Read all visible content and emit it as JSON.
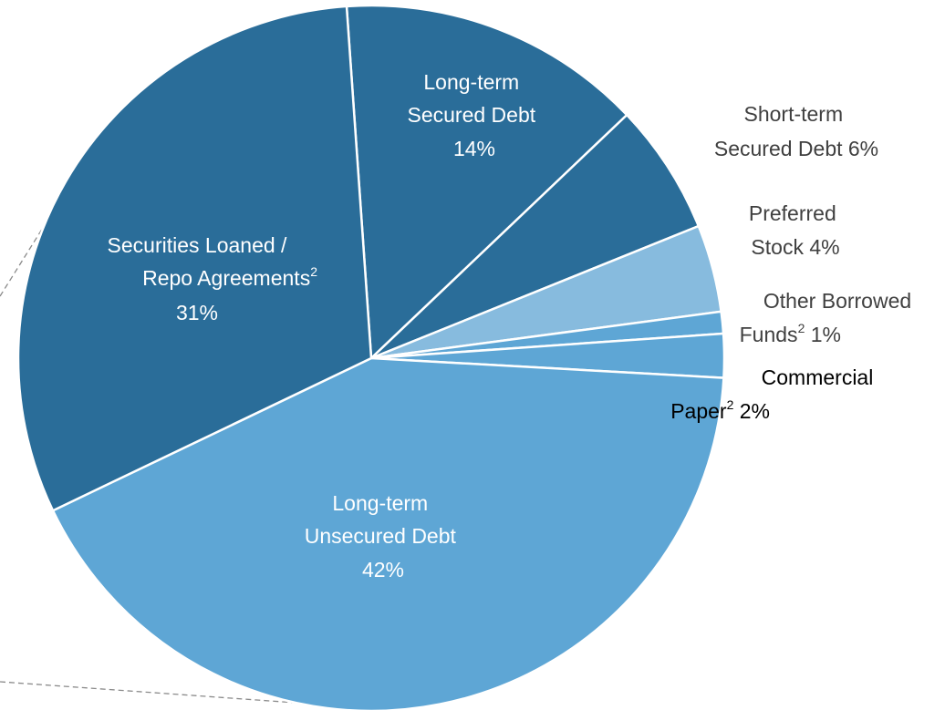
{
  "chart_data": {
    "type": "pie",
    "slices": [
      {
        "key": "ltsd",
        "lines": [
          "Long-term",
          "Secured Debt"
        ],
        "pct_text": "14%",
        "value": 14,
        "color": "#2a6d99"
      },
      {
        "key": "stsd",
        "lines": [
          "Short-term",
          "Secured Debt 6%"
        ],
        "pct_text": "",
        "value": 6,
        "color": "#2a6d99"
      },
      {
        "key": "pref",
        "lines": [
          "Preferred",
          "Stock 4%"
        ],
        "pct_text": "",
        "value": 4,
        "color": "#87bbde"
      },
      {
        "key": "obf",
        "lines": [
          "Other Borrowed",
          "Funds"
        ],
        "tail": " 1%",
        "pct_text": "",
        "value": 1,
        "color": "#5ea6d5"
      },
      {
        "key": "cp",
        "lines": [
          "Commercial",
          "Paper"
        ],
        "tail": " 2%",
        "pct_text": "",
        "value": 2,
        "color": "#5ea6d5"
      },
      {
        "key": "ltud",
        "lines": [
          "Long-term",
          "Unsecured Debt"
        ],
        "pct_text": "42%",
        "value": 42,
        "color": "#5ea6d5"
      },
      {
        "key": "slra",
        "lines": [
          "Securities Loaned /",
          "Repo Agreements"
        ],
        "pct_text": "31%",
        "value": 31,
        "color": "#2a6d99"
      }
    ],
    "footnote_mark": "2"
  }
}
